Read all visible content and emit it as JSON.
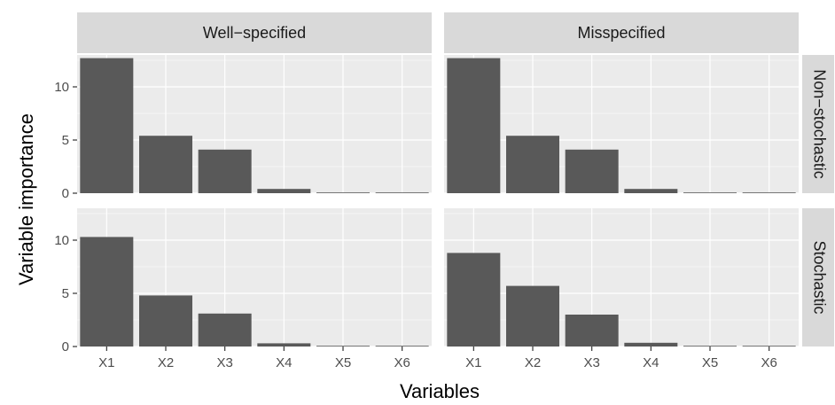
{
  "chart_data": {
    "type": "bar",
    "xlabel": "Variables",
    "ylabel": "Variable importance",
    "categories": [
      "X1",
      "X2",
      "X3",
      "X4",
      "X5",
      "X6"
    ],
    "yticks": [
      0,
      5,
      10
    ],
    "ylim": [
      0,
      13
    ],
    "col_facets": [
      "Well−specified",
      "Misspecified"
    ],
    "row_facets": [
      "Non−stochastic",
      "Stochastic"
    ],
    "panels": [
      {
        "col": 0,
        "row": 0,
        "values": [
          12.7,
          5.4,
          4.1,
          0.4,
          0.05,
          0.03
        ]
      },
      {
        "col": 1,
        "row": 0,
        "values": [
          12.7,
          5.4,
          4.1,
          0.4,
          0.05,
          0.03
        ]
      },
      {
        "col": 0,
        "row": 1,
        "values": [
          10.3,
          4.8,
          3.1,
          0.3,
          0.05,
          0.03
        ]
      },
      {
        "col": 1,
        "row": 1,
        "values": [
          8.8,
          5.7,
          3.0,
          0.35,
          0.05,
          0.03
        ]
      }
    ],
    "colors": {
      "bar": "#595959",
      "panel_bg": "#ebebeb",
      "strip_bg": "#d9d9d9",
      "grid": "#ffffff"
    }
  }
}
